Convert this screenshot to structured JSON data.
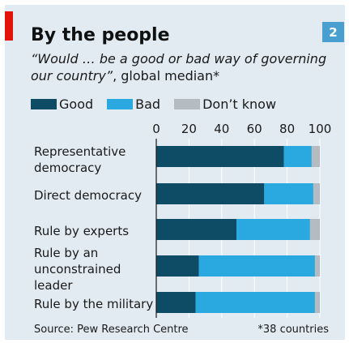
{
  "header": {
    "title": "By the people",
    "badge": "2",
    "subtitle_quote": "“Would … be a good or bad way of governing our country”",
    "subtitle_rest": ", global median*"
  },
  "footer": {
    "source": "Source: Pew Research Centre",
    "note": "*38 countries"
  },
  "colors": {
    "good": "#0e4c65",
    "bad": "#2aa8e0",
    "dont_know": "#b4bcc1",
    "background": "#e1ebf1",
    "accent_red": "#e3120b"
  },
  "chart_data": {
    "type": "bar",
    "orientation": "horizontal",
    "stacked": true,
    "title": "By the people",
    "xlim": [
      0,
      100
    ],
    "ticks": [
      "0",
      "20",
      "40",
      "60",
      "80",
      "100"
    ],
    "tick_values": [
      0,
      20,
      40,
      60,
      80,
      100
    ],
    "legend_placement": "top-left",
    "categories": [
      [
        "Representative",
        "democracy"
      ],
      [
        "Direct democracy"
      ],
      [
        "Rule by experts"
      ],
      [
        "Rule by an",
        "unconstrained",
        "leader"
      ],
      [
        "Rule by the military"
      ]
    ],
    "series": [
      {
        "name": "Good",
        "values": [
          78,
          66,
          49,
          26,
          24
        ]
      },
      {
        "name": "Bad",
        "values": [
          17,
          30,
          45,
          71,
          73
        ]
      },
      {
        "name": "Don’t know",
        "values": [
          5,
          4,
          6,
          3,
          3
        ]
      }
    ]
  }
}
